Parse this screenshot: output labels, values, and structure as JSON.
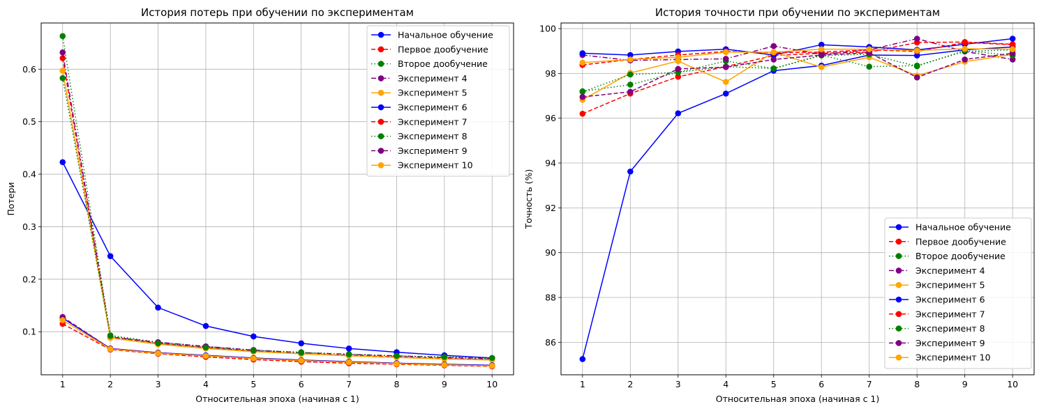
{
  "chart_data": [
    {
      "type": "line",
      "title": "История потерь при обучении по экспериментам",
      "xlabel": "Относительная эпоха (начиная с 1)",
      "ylabel": "Потери",
      "x": [
        1,
        2,
        3,
        4,
        5,
        6,
        7,
        8,
        9,
        10
      ],
      "xlim": [
        0.55,
        10.45
      ],
      "ylim": [
        0.018,
        0.688
      ],
      "yticks": [
        0.1,
        0.2,
        0.3,
        0.4,
        0.5,
        0.6
      ],
      "ytick_labels": [
        "0.1",
        "0.2",
        "0.3",
        "0.4",
        "0.5",
        "0.6"
      ],
      "grid": true,
      "legend_position": "top-right",
      "series": [
        {
          "name": "Начальное обучение",
          "color": "#0000ff",
          "linestyle": "solid",
          "values": [
            0.423,
            0.244,
            0.146,
            0.111,
            0.091,
            0.078,
            0.068,
            0.061,
            0.055,
            0.05
          ]
        },
        {
          "name": "Первое дообучение",
          "color": "#ff0000",
          "linestyle": "dashed",
          "values": [
            0.621,
            0.09,
            0.078,
            0.07,
            0.063,
            0.058,
            0.055,
            0.052,
            0.049,
            0.047
          ]
        },
        {
          "name": "Второе дообучение",
          "color": "#008000",
          "linestyle": "dotted",
          "values": [
            0.663,
            0.093,
            0.08,
            0.072,
            0.065,
            0.061,
            0.057,
            0.054,
            0.051,
            0.048
          ]
        },
        {
          "name": "Эксперимент 4",
          "color": "#800080",
          "linestyle": "dashdot",
          "values": [
            0.632,
            0.09,
            0.08,
            0.072,
            0.065,
            0.06,
            0.057,
            0.054,
            0.051,
            0.049
          ]
        },
        {
          "name": "Эксперимент 5",
          "color": "#ffa500",
          "linestyle": "solid",
          "values": [
            0.597,
            0.088,
            0.076,
            0.068,
            0.062,
            0.058,
            0.054,
            0.051,
            0.048,
            0.046
          ]
        },
        {
          "name": "Эксперимент 6",
          "color": "#0000ff",
          "linestyle": "solid",
          "values": [
            0.126,
            0.068,
            0.06,
            0.055,
            0.05,
            0.046,
            0.043,
            0.04,
            0.038,
            0.036
          ]
        },
        {
          "name": "Эксперимент 7",
          "color": "#ff0000",
          "linestyle": "dashed",
          "values": [
            0.115,
            0.066,
            0.058,
            0.052,
            0.047,
            0.043,
            0.04,
            0.038,
            0.036,
            0.034
          ]
        },
        {
          "name": "Эксперимент 8",
          "color": "#008000",
          "linestyle": "dotted",
          "values": [
            0.583,
            0.092,
            0.078,
            0.07,
            0.064,
            0.06,
            0.057,
            0.054,
            0.052,
            0.05
          ]
        },
        {
          "name": "Эксперимент 9",
          "color": "#800080",
          "linestyle": "dashed",
          "values": [
            0.128,
            0.068,
            0.06,
            0.054,
            0.049,
            0.045,
            0.042,
            0.04,
            0.037,
            0.035
          ]
        },
        {
          "name": "Эксперимент 10",
          "color": "#ffa500",
          "linestyle": "solid",
          "values": [
            0.122,
            0.067,
            0.059,
            0.054,
            0.049,
            0.045,
            0.042,
            0.039,
            0.037,
            0.035
          ]
        }
      ]
    },
    {
      "type": "line",
      "title": "История точности при обучении по экспериментам",
      "xlabel": "Относительная эпоха (начиная с 1)",
      "ylabel": "Точность (%)",
      "x": [
        1,
        2,
        3,
        4,
        5,
        6,
        7,
        8,
        9,
        10
      ],
      "xlim": [
        0.55,
        10.45
      ],
      "ylim": [
        84.55,
        100.25
      ],
      "yticks": [
        86,
        88,
        90,
        92,
        94,
        96,
        98,
        100
      ],
      "ytick_labels": [
        "86",
        "88",
        "90",
        "92",
        "94",
        "96",
        "98",
        "100"
      ],
      "grid": true,
      "legend_position": "bottom-right",
      "series": [
        {
          "name": "Начальное обучение",
          "color": "#0000ff",
          "linestyle": "solid",
          "values": [
            85.25,
            93.62,
            96.22,
            97.1,
            98.12,
            98.35,
            98.82,
            98.8,
            99.05,
            99.18
          ]
        },
        {
          "name": "Первое дообучение",
          "color": "#ff0000",
          "linestyle": "dashed",
          "values": [
            96.2,
            97.1,
            97.85,
            98.3,
            98.8,
            98.9,
            98.95,
            99.38,
            99.4,
            99.3
          ]
        },
        {
          "name": "Второе дообучение",
          "color": "#008000",
          "linestyle": "dotted",
          "values": [
            97.2,
            97.5,
            98.05,
            98.55,
            98.22,
            98.82,
            98.3,
            98.35,
            98.98,
            99.05
          ]
        },
        {
          "name": "Эксперимент 4",
          "color": "#800080",
          "linestyle": "dashdot",
          "values": [
            98.82,
            98.58,
            98.62,
            98.65,
            99.22,
            98.85,
            99.05,
            99.55,
            98.98,
            98.62
          ]
        },
        {
          "name": "Эксперимент 5",
          "color": "#ffa500",
          "linestyle": "solid",
          "values": [
            96.82,
            98.02,
            98.55,
            97.62,
            98.95,
            98.28,
            98.72,
            97.9,
            98.52,
            98.85
          ]
        },
        {
          "name": "Эксперимент 6",
          "color": "#0000ff",
          "linestyle": "solid",
          "values": [
            98.9,
            98.82,
            98.98,
            99.08,
            98.82,
            99.28,
            99.18,
            99.05,
            99.3,
            99.55
          ]
        },
        {
          "name": "Эксперимент 7",
          "color": "#ff0000",
          "linestyle": "dashed",
          "values": [
            98.38,
            98.62,
            98.82,
            98.98,
            98.92,
            98.95,
            99.05,
            98.98,
            99.38,
            99.28
          ]
        },
        {
          "name": "Эксперимент 8",
          "color": "#008000",
          "linestyle": "dotted",
          "values": [
            97.18,
            97.95,
            98.05,
            98.3,
            98.22,
            98.8,
            98.85,
            98.32,
            99.02,
            98.8
          ]
        },
        {
          "name": "Эксперимент 9",
          "color": "#800080",
          "linestyle": "dashed",
          "values": [
            96.95,
            97.18,
            98.2,
            98.28,
            98.62,
            98.82,
            98.92,
            97.82,
            98.62,
            98.9
          ]
        },
        {
          "name": "Эксперимент 10",
          "color": "#ffa500",
          "linestyle": "solid",
          "values": [
            98.48,
            98.62,
            98.72,
            98.95,
            98.95,
            99.08,
            99.08,
            99.02,
            99.1,
            99.08
          ]
        }
      ]
    }
  ]
}
